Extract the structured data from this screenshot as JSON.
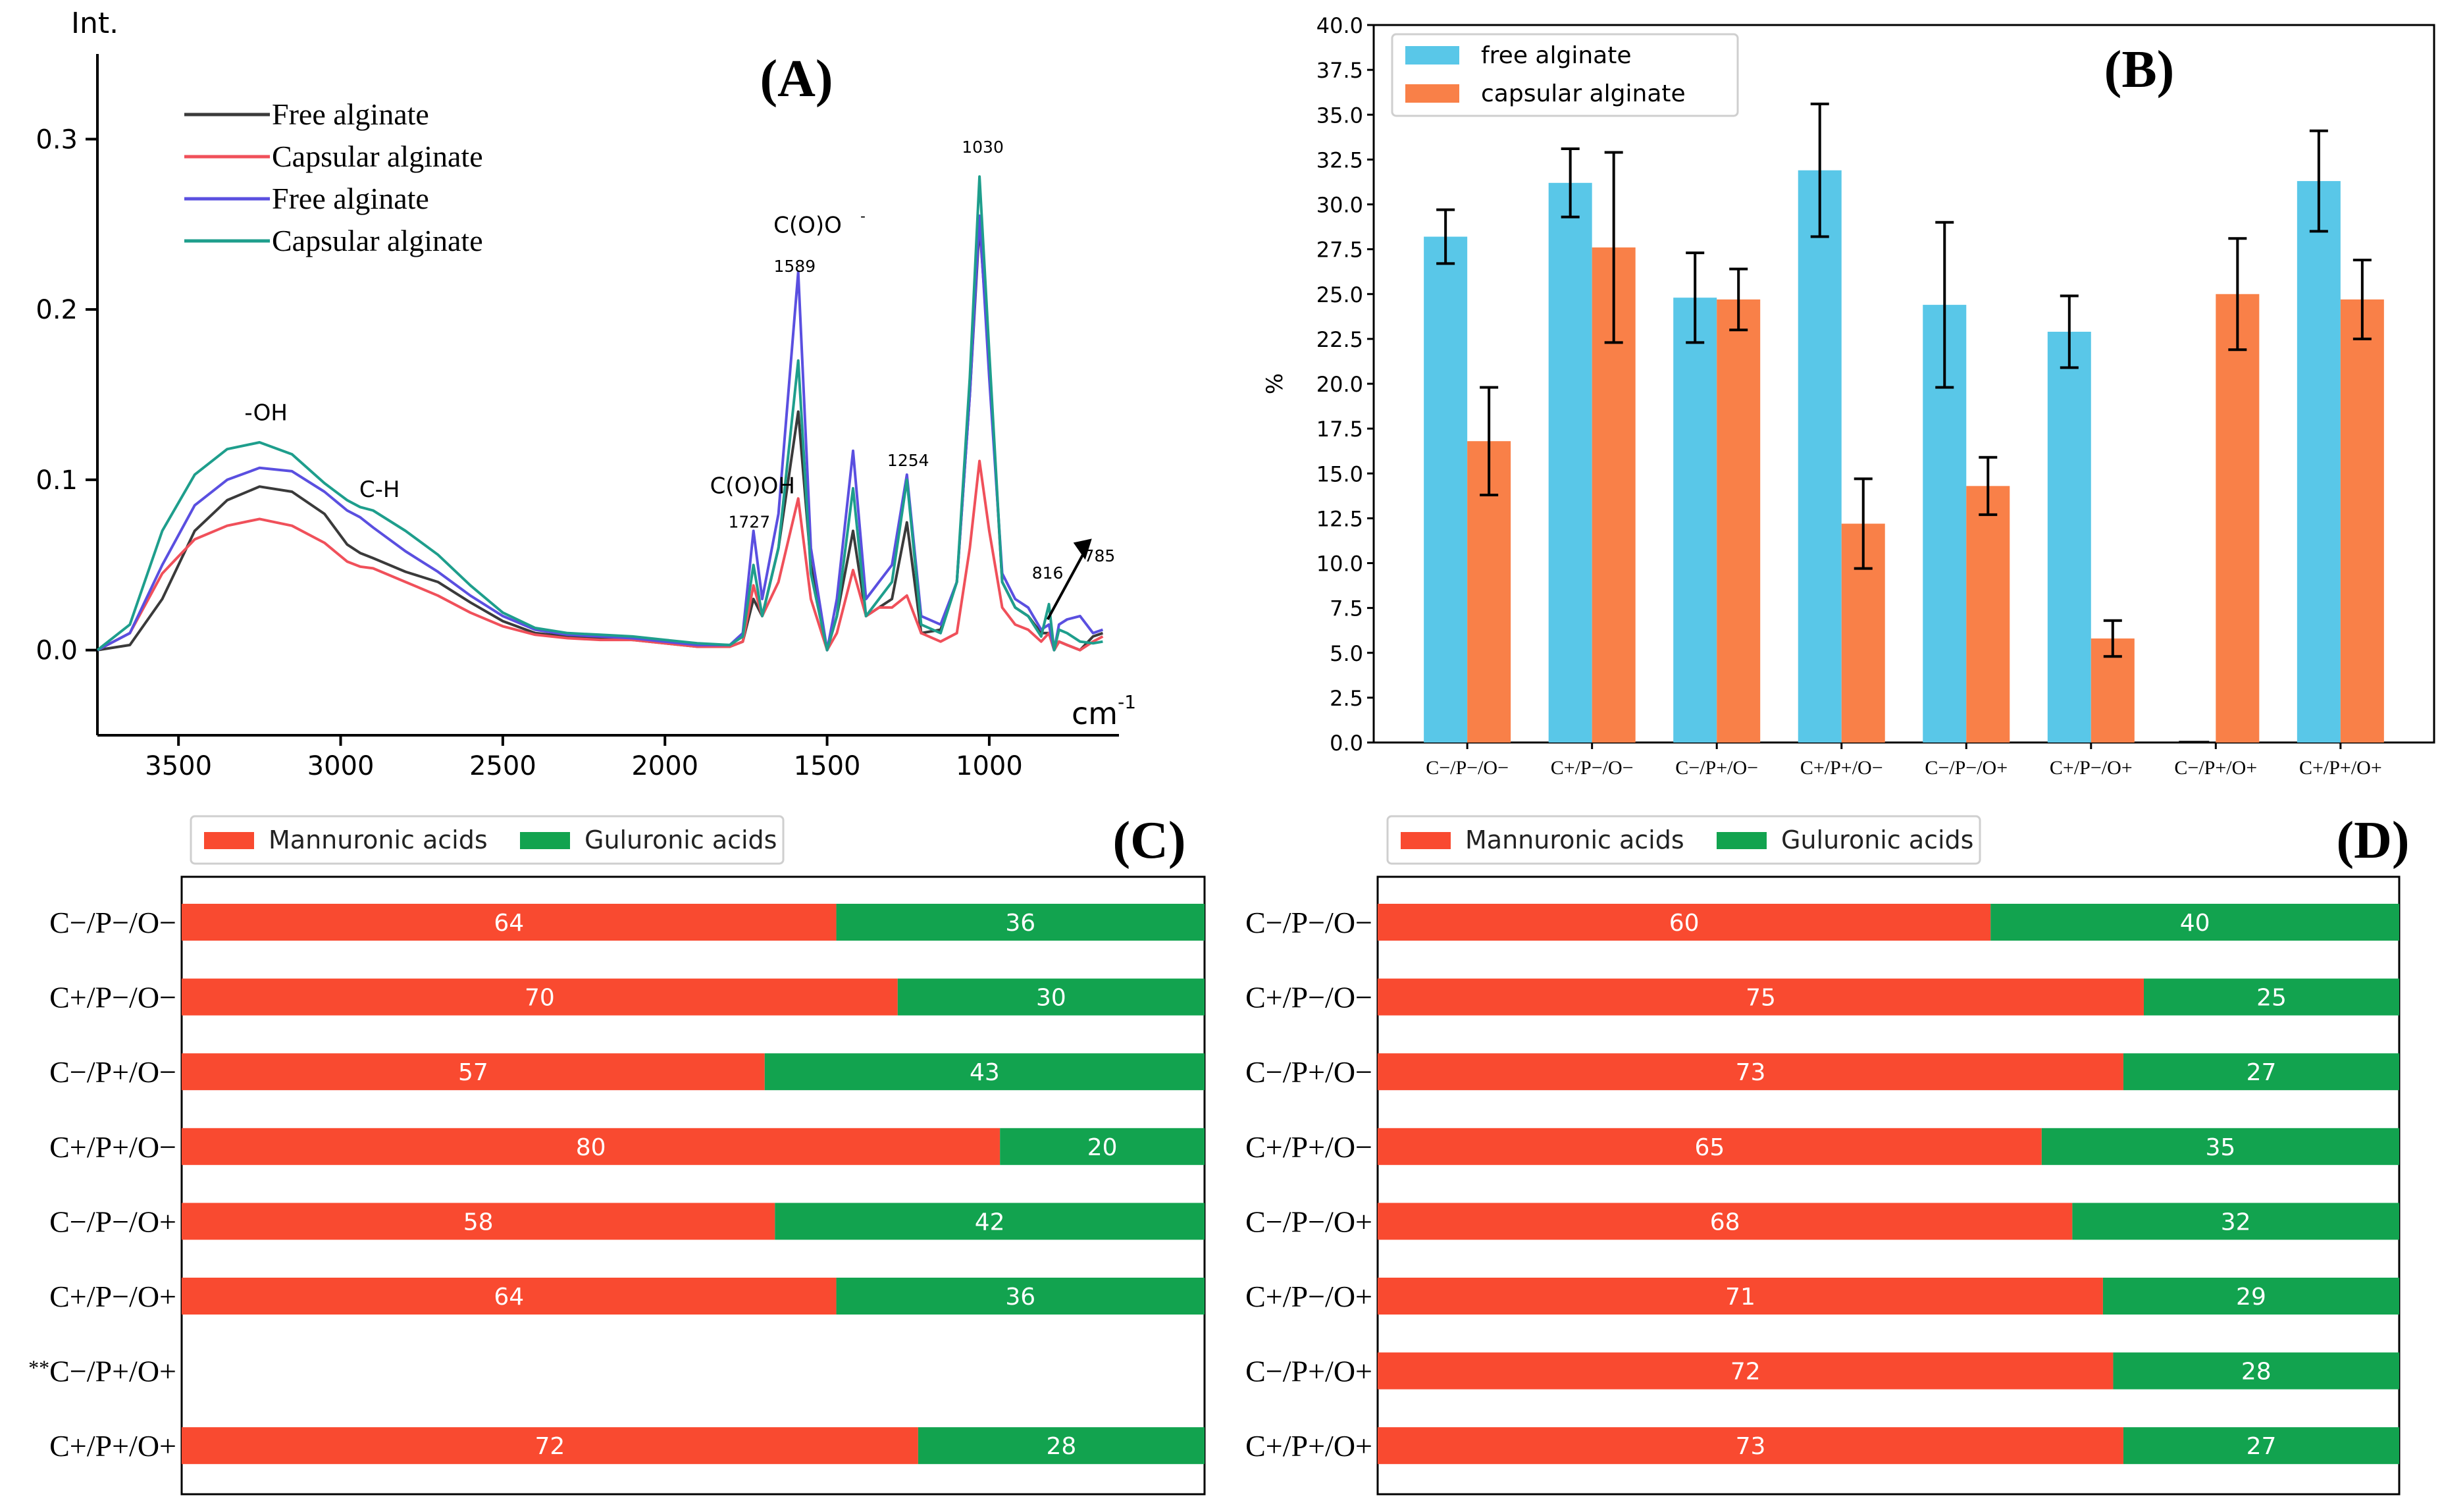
{
  "chart_data": [
    {
      "panel": "(A)",
      "type": "line",
      "ylabel": "Int.",
      "xlabel": "cm",
      "xlabel_sup": "-1",
      "xlim": [
        3750,
        600
      ],
      "ylim": [
        -0.05,
        0.35
      ],
      "x_ticks": [
        {
          "v": 3500,
          "label": "3500"
        },
        {
          "v": 3000,
          "label": "3000"
        },
        {
          "v": 2500,
          "label": "2500"
        },
        {
          "v": 2000,
          "label": "2000"
        },
        {
          "v": 1500,
          "label": "1500"
        },
        {
          "v": 1000,
          "label": "1000"
        }
      ],
      "y_ticks": [
        {
          "v": 0.0,
          "label": "0.0"
        },
        {
          "v": 0.1,
          "label": "0.1"
        },
        {
          "v": 0.2,
          "label": "0.2"
        },
        {
          "v": 0.3,
          "label": "0.3"
        }
      ],
      "legend": [
        {
          "label": "Free alginate",
          "color": "#3a3a3a"
        },
        {
          "label": "Capsular alginate",
          "color": "#f0505a"
        },
        {
          "label": "Free alginate",
          "color": "#5a4fe0"
        },
        {
          "label": "Capsular alginate",
          "color": "#1e9e8c"
        }
      ],
      "annotations": [
        {
          "text": "-OH",
          "x": 3230,
          "y": 0.135,
          "size": 34
        },
        {
          "text": "C-H",
          "x": 2880,
          "y": 0.09,
          "size": 34
        },
        {
          "text": "C(O)OH",
          "x": 1730,
          "y": 0.092,
          "size": 34
        },
        {
          "text": "1727",
          "x": 1740,
          "y": 0.072,
          "size": 25
        },
        {
          "text": "C(O)O",
          "x": 1560,
          "y": 0.245,
          "size": 34
        },
        {
          "text": "1589",
          "x": 1600,
          "y": 0.222,
          "size": 25
        },
        {
          "text": "1254",
          "x": 1250,
          "y": 0.108,
          "size": 25
        },
        {
          "text": "1030",
          "x": 1020,
          "y": 0.292,
          "size": 25
        },
        {
          "text": "816",
          "x": 820,
          "y": 0.042,
          "size": 25
        },
        {
          "text": "785",
          "x": 660,
          "y": 0.052,
          "size": 25
        }
      ],
      "series": [
        {
          "name": "Free alginate",
          "color": "#3a3a3a",
          "x": [
            3750,
            3650,
            3550,
            3450,
            3350,
            3250,
            3150,
            3050,
            2980,
            2940,
            2900,
            2800,
            2700,
            2600,
            2500,
            2400,
            2300,
            2200,
            2100,
            2000,
            1900,
            1800,
            1760,
            1727,
            1700,
            1650,
            1589,
            1550,
            1500,
            1470,
            1420,
            1380,
            1340,
            1300,
            1254,
            1210,
            1150,
            1100,
            1060,
            1030,
            1000,
            960,
            920,
            880,
            840,
            816,
            800,
            785,
            760,
            720,
            680,
            650
          ],
          "y": [
            0.0,
            0.003,
            0.03,
            0.07,
            0.088,
            0.096,
            0.093,
            0.08,
            0.062,
            0.057,
            0.054,
            0.046,
            0.04,
            0.028,
            0.017,
            0.01,
            0.008,
            0.007,
            0.006,
            0.004,
            0.002,
            0.002,
            0.005,
            0.03,
            0.02,
            0.06,
            0.14,
            0.05,
            0.0,
            0.02,
            0.07,
            0.02,
            0.025,
            0.03,
            0.075,
            0.01,
            0.012,
            0.04,
            0.15,
            0.25,
            0.17,
            0.04,
            0.025,
            0.02,
            0.01,
            0.01,
            0.0,
            0.005,
            0.003,
            0.0,
            0.008,
            0.01
          ]
        },
        {
          "name": "Capsular alginate",
          "color": "#f0505a",
          "x": [
            3750,
            3650,
            3550,
            3450,
            3350,
            3250,
            3150,
            3050,
            2980,
            2940,
            2900,
            2800,
            2700,
            2600,
            2500,
            2400,
            2300,
            2200,
            2100,
            2000,
            1900,
            1800,
            1760,
            1727,
            1700,
            1650,
            1589,
            1550,
            1500,
            1470,
            1420,
            1380,
            1340,
            1300,
            1254,
            1210,
            1150,
            1100,
            1060,
            1030,
            1000,
            960,
            920,
            880,
            840,
            816,
            800,
            785,
            760,
            720,
            680,
            650
          ],
          "y": [
            0.0,
            0.01,
            0.045,
            0.065,
            0.073,
            0.077,
            0.073,
            0.063,
            0.052,
            0.049,
            0.048,
            0.04,
            0.032,
            0.022,
            0.014,
            0.009,
            0.007,
            0.006,
            0.006,
            0.004,
            0.002,
            0.002,
            0.005,
            0.038,
            0.02,
            0.04,
            0.089,
            0.03,
            0.0,
            0.01,
            0.047,
            0.02,
            0.025,
            0.025,
            0.032,
            0.01,
            0.005,
            0.01,
            0.06,
            0.111,
            0.07,
            0.025,
            0.015,
            0.012,
            0.005,
            0.01,
            0.0,
            0.005,
            0.003,
            0.0,
            0.005,
            0.008
          ]
        },
        {
          "name": "Free alginate",
          "color": "#5a4fe0",
          "x": [
            3750,
            3650,
            3550,
            3450,
            3350,
            3250,
            3150,
            3050,
            2980,
            2940,
            2900,
            2800,
            2700,
            2600,
            2500,
            2400,
            2300,
            2200,
            2100,
            2000,
            1900,
            1800,
            1760,
            1727,
            1700,
            1650,
            1589,
            1550,
            1500,
            1470,
            1420,
            1380,
            1340,
            1300,
            1254,
            1210,
            1150,
            1100,
            1060,
            1030,
            1000,
            960,
            920,
            880,
            840,
            816,
            800,
            785,
            760,
            720,
            680,
            650
          ],
          "y": [
            0.0,
            0.01,
            0.05,
            0.085,
            0.1,
            0.107,
            0.105,
            0.093,
            0.082,
            0.078,
            0.072,
            0.058,
            0.046,
            0.032,
            0.02,
            0.012,
            0.009,
            0.008,
            0.007,
            0.005,
            0.003,
            0.003,
            0.01,
            0.07,
            0.03,
            0.08,
            0.222,
            0.06,
            0.0,
            0.03,
            0.117,
            0.03,
            0.04,
            0.05,
            0.103,
            0.02,
            0.015,
            0.04,
            0.15,
            0.255,
            0.16,
            0.045,
            0.03,
            0.025,
            0.012,
            0.015,
            0.0,
            0.015,
            0.018,
            0.02,
            0.01,
            0.012
          ]
        },
        {
          "name": "Capsular alginate",
          "color": "#1e9e8c",
          "x": [
            3750,
            3650,
            3550,
            3450,
            3350,
            3250,
            3150,
            3050,
            2980,
            2940,
            2900,
            2800,
            2700,
            2600,
            2500,
            2400,
            2300,
            2200,
            2100,
            2000,
            1900,
            1800,
            1760,
            1727,
            1700,
            1650,
            1589,
            1550,
            1500,
            1470,
            1420,
            1380,
            1340,
            1300,
            1254,
            1210,
            1150,
            1100,
            1060,
            1030,
            1000,
            960,
            920,
            880,
            840,
            816,
            800,
            785,
            760,
            720,
            680,
            650
          ],
          "y": [
            0.0,
            0.015,
            0.07,
            0.103,
            0.118,
            0.122,
            0.115,
            0.098,
            0.088,
            0.084,
            0.082,
            0.07,
            0.056,
            0.038,
            0.022,
            0.013,
            0.01,
            0.009,
            0.008,
            0.006,
            0.004,
            0.003,
            0.008,
            0.05,
            0.02,
            0.06,
            0.17,
            0.045,
            0.0,
            0.02,
            0.095,
            0.02,
            0.03,
            0.04,
            0.1,
            0.015,
            0.01,
            0.04,
            0.16,
            0.278,
            0.175,
            0.04,
            0.025,
            0.02,
            0.008,
            0.027,
            0.0,
            0.012,
            0.01,
            0.005,
            0.004,
            0.005
          ]
        }
      ]
    },
    {
      "panel": "(B)",
      "type": "bar",
      "ylabel": "%",
      "ylim": [
        0,
        40
      ],
      "y_ticks": [
        "0.0",
        "2.5",
        "5.0",
        "7.5",
        "10.0",
        "12.5",
        "15.0",
        "17.5",
        "20.0",
        "22.5",
        "25.0",
        "27.5",
        "30.0",
        "32.5",
        "35.0",
        "37.5",
        "40.0"
      ],
      "categories": [
        "C−/P−/O−",
        "C+/P−/O−",
        "C−/P+/O−",
        "C+/P+/O−",
        "C−/P−/O+",
        "C+/P−/O+",
        "C−/P+/O+",
        "C+/P+/O+"
      ],
      "series": [
        {
          "name": "free alginate",
          "color": "#59c7e8",
          "values": [
            28.2,
            31.2,
            24.8,
            31.9,
            24.4,
            22.9,
            0,
            31.3
          ],
          "errors": [
            1.5,
            1.9,
            2.5,
            3.7,
            4.6,
            2.0,
            0,
            2.8
          ]
        },
        {
          "name": "capsular alginate",
          "color": "#f98048",
          "values": [
            16.8,
            27.6,
            24.7,
            12.2,
            14.3,
            5.8,
            25.0,
            24.7
          ],
          "errors": [
            3.0,
            5.3,
            1.7,
            2.5,
            1.6,
            1.0,
            3.1,
            2.2
          ]
        }
      ]
    },
    {
      "panel": "(C)",
      "type": "bar",
      "orientation": "horizontal-stacked",
      "xlim": [
        0,
        100
      ],
      "legend": [
        {
          "label": "Mannuronic acids",
          "color": "#f94a30"
        },
        {
          "label": "Guluronic acids",
          "color": "#12a34f"
        }
      ],
      "categories": [
        "C−/P−/O−",
        "C+/P−/O−",
        "C−/P+/O−",
        "C+/P+/O−",
        "C−/P−/O+",
        "C+/P−/O+",
        "C−/P+/O+",
        "C+/P+/O+"
      ],
      "category_prefix": [
        "",
        "",
        "",
        "",
        "",
        "",
        "**",
        ""
      ],
      "series": [
        {
          "name": "Mannuronic acids",
          "values": [
            64,
            70,
            57,
            80,
            58,
            64,
            null,
            72
          ],
          "labels": [
            "64",
            "70",
            "57",
            "80",
            "58",
            "64",
            "",
            "72"
          ]
        },
        {
          "name": "Guluronic acids",
          "values": [
            36,
            30,
            43,
            20,
            42,
            36,
            null,
            28
          ],
          "labels": [
            "36",
            "30",
            "43",
            "20",
            "42",
            "36",
            "",
            "28"
          ]
        }
      ]
    },
    {
      "panel": "(D)",
      "type": "bar",
      "orientation": "horizontal-stacked",
      "xlim": [
        0,
        100
      ],
      "legend": [
        {
          "label": "Mannuronic acids",
          "color": "#f94a30"
        },
        {
          "label": "Guluronic acids",
          "color": "#12a34f"
        }
      ],
      "categories": [
        "C−/P−/O−",
        "C+/P−/O−",
        "C−/P+/O−",
        "C+/P+/O−",
        "C−/P−/O+",
        "C+/P−/O+",
        "C−/P+/O+",
        "C+/P+/O+"
      ],
      "category_prefix": [
        "",
        "",
        "",
        "",
        "",
        "",
        "",
        ""
      ],
      "series": [
        {
          "name": "Mannuronic acids",
          "values": [
            60,
            75,
            73,
            65,
            68,
            71,
            72,
            73
          ],
          "labels": [
            "60",
            "75",
            "73",
            "65",
            "68",
            "71",
            "72",
            "73"
          ]
        },
        {
          "name": "Guluronic acids",
          "values": [
            40,
            25,
            27,
            35,
            32,
            29,
            28,
            27
          ],
          "labels": [
            "40",
            "25",
            "27",
            "35",
            "32",
            "29",
            "28",
            "27"
          ]
        }
      ]
    }
  ]
}
